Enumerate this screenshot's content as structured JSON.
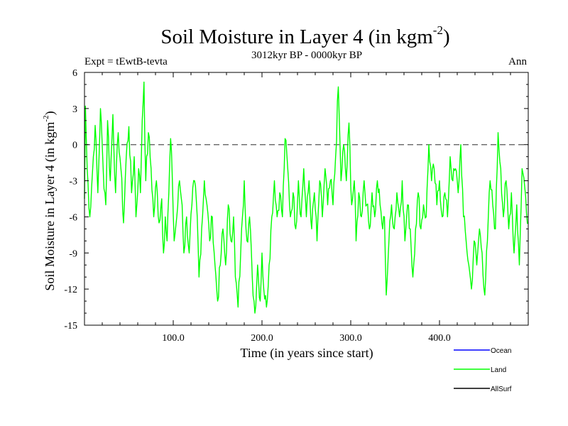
{
  "chart_data": {
    "type": "line",
    "title": "Soil Moisture in Layer 4 (in kgm",
    "title_sup": "-2",
    "title_close": ")",
    "subtitle": "3012kyr BP - 0000kyr BP",
    "expt_label": "Expt = tEwtB-tevta",
    "season_label": "Ann",
    "xlabel": "Time (in years since start)",
    "ylabel": "Soil Moisture in Layer 4 (in kgm",
    "ylabel_sup": "-2",
    "ylabel_close": ")",
    "xlim": [
      0,
      500
    ],
    "ylim": [
      -15,
      6
    ],
    "yticks": [
      6,
      3,
      0,
      -3,
      -6,
      -9,
      -12,
      -15
    ],
    "ytick_labels": [
      "6",
      "3",
      "0",
      "-3",
      "-6",
      "-9",
      "-12",
      "-15"
    ],
    "xticks": [
      100,
      200,
      300,
      400
    ],
    "xtick_labels": [
      "100.0",
      "200.0",
      "300.0",
      "400.0"
    ],
    "zero_line": 0,
    "legend": [
      {
        "name": "Ocean",
        "color": "#0000ff"
      },
      {
        "name": "Land",
        "color": "#00ff00"
      },
      {
        "name": "AllSurf",
        "color": "#000000"
      }
    ],
    "series": [
      {
        "name": "Land",
        "color": "#00ff00",
        "x_start": 0,
        "x_step": 1,
        "keyframes": [
          [
            0,
            -4.5
          ],
          [
            1,
            3.2
          ],
          [
            3,
            -2
          ],
          [
            6,
            -6
          ],
          [
            10,
            -1
          ],
          [
            12,
            1.6
          ],
          [
            15,
            -4
          ],
          [
            18,
            3
          ],
          [
            21,
            -2
          ],
          [
            24,
            -5
          ],
          [
            26,
            2
          ],
          [
            29,
            -3
          ],
          [
            32,
            2.5
          ],
          [
            35,
            -4
          ],
          [
            38,
            1
          ],
          [
            41,
            -2
          ],
          [
            44,
            -6.5
          ],
          [
            47,
            -1
          ],
          [
            50,
            1.5
          ],
          [
            53,
            -4
          ],
          [
            56,
            -1
          ],
          [
            58,
            -6
          ],
          [
            61,
            -2
          ],
          [
            63,
            -4
          ],
          [
            65,
            2
          ],
          [
            67,
            5.2
          ],
          [
            69,
            -3
          ],
          [
            72,
            1
          ],
          [
            75,
            -2
          ],
          [
            78,
            -6
          ],
          [
            81,
            -3
          ],
          [
            84,
            -6.5
          ],
          [
            87,
            -4.5
          ],
          [
            89,
            -9
          ],
          [
            91,
            -6
          ],
          [
            93,
            -8
          ],
          [
            95,
            -4
          ],
          [
            97,
            0.5
          ],
          [
            99,
            -3
          ],
          [
            101,
            -8
          ],
          [
            104,
            -6
          ],
          [
            107,
            -3
          ],
          [
            110,
            -5
          ],
          [
            112,
            -9
          ],
          [
            115,
            -6
          ],
          [
            118,
            -9
          ],
          [
            121,
            -5
          ],
          [
            124,
            -3
          ],
          [
            127,
            -6
          ],
          [
            129,
            -11
          ],
          [
            132,
            -7
          ],
          [
            135,
            -3
          ],
          [
            138,
            -5
          ],
          [
            141,
            -8
          ],
          [
            144,
            -6
          ],
          [
            147,
            -10
          ],
          [
            150,
            -13
          ],
          [
            153,
            -10
          ],
          [
            156,
            -7
          ],
          [
            159,
            -10
          ],
          [
            162,
            -5
          ],
          [
            165,
            -8
          ],
          [
            168,
            -6
          ],
          [
            170,
            -11
          ],
          [
            173,
            -13.5
          ],
          [
            176,
            -9
          ],
          [
            178,
            -6
          ],
          [
            180,
            -3
          ],
          [
            183,
            -8
          ],
          [
            186,
            -6
          ],
          [
            189,
            -11
          ],
          [
            192,
            -14
          ],
          [
            195,
            -10
          ],
          [
            198,
            -13
          ],
          [
            200,
            -9
          ],
          [
            202,
            -12
          ],
          [
            205,
            -13.5
          ],
          [
            208,
            -10
          ],
          [
            211,
            -6
          ],
          [
            214,
            -3
          ],
          [
            217,
            -6
          ],
          [
            220,
            -4
          ],
          [
            223,
            -6
          ],
          [
            226,
            0.5
          ],
          [
            229,
            -2
          ],
          [
            232,
            -6
          ],
          [
            235,
            -4
          ],
          [
            238,
            -7
          ],
          [
            241,
            -3
          ],
          [
            244,
            -6
          ],
          [
            247,
            -2
          ],
          [
            250,
            -6
          ],
          [
            253,
            -3
          ],
          [
            256,
            -7
          ],
          [
            259,
            -4
          ],
          [
            262,
            -8
          ],
          [
            265,
            -3
          ],
          [
            268,
            -6
          ],
          [
            271,
            -2
          ],
          [
            274,
            -5
          ],
          [
            277,
            -3
          ],
          [
            280,
            -5
          ],
          [
            283,
            -1
          ],
          [
            286,
            4.8
          ],
          [
            289,
            -3
          ],
          [
            292,
            0
          ],
          [
            295,
            -3
          ],
          [
            298,
            1.8
          ],
          [
            301,
            -5
          ],
          [
            304,
            -3
          ],
          [
            306,
            -8
          ],
          [
            309,
            -4
          ],
          [
            312,
            -6
          ],
          [
            315,
            -3
          ],
          [
            318,
            -5
          ],
          [
            321,
            -7
          ],
          [
            324,
            -4
          ],
          [
            327,
            -6
          ],
          [
            330,
            -3
          ],
          [
            333,
            -5
          ],
          [
            336,
            -7
          ],
          [
            338,
            -6
          ],
          [
            340,
            -12.5
          ],
          [
            343,
            -8
          ],
          [
            346,
            -5
          ],
          [
            349,
            -7
          ],
          [
            352,
            -4
          ],
          [
            355,
            -6
          ],
          [
            358,
            -3
          ],
          [
            361,
            -8
          ],
          [
            364,
            -5
          ],
          [
            367,
            -7
          ],
          [
            370,
            -11
          ],
          [
            373,
            -7
          ],
          [
            376,
            -4
          ],
          [
            379,
            -7
          ],
          [
            382,
            -5
          ],
          [
            385,
            -6
          ],
          [
            388,
            0
          ],
          [
            391,
            -3
          ],
          [
            394,
            -2
          ],
          [
            397,
            -5
          ],
          [
            400,
            -3
          ],
          [
            403,
            -6
          ],
          [
            406,
            -4
          ],
          [
            409,
            -6
          ],
          [
            412,
            -1
          ],
          [
            415,
            -3
          ],
          [
            418,
            -2
          ],
          [
            421,
            -4
          ],
          [
            424,
            0
          ],
          [
            427,
            -6
          ],
          [
            430,
            -8
          ],
          [
            433,
            -10
          ],
          [
            436,
            -12
          ],
          [
            439,
            -8
          ],
          [
            442,
            -10
          ],
          [
            445,
            -7
          ],
          [
            448,
            -9
          ],
          [
            451,
            -12.5
          ],
          [
            454,
            -8
          ],
          [
            457,
            -3
          ],
          [
            460,
            -5
          ],
          [
            463,
            -7
          ],
          [
            466,
            1
          ],
          [
            469,
            -2
          ],
          [
            472,
            -6
          ],
          [
            475,
            -3
          ],
          [
            478,
            -7
          ],
          [
            481,
            -4
          ],
          [
            484,
            -9
          ],
          [
            487,
            -5
          ],
          [
            490,
            -10
          ],
          [
            493,
            -2
          ],
          [
            496,
            -3.5
          ],
          [
            500,
            -6.5
          ]
        ]
      }
    ]
  }
}
